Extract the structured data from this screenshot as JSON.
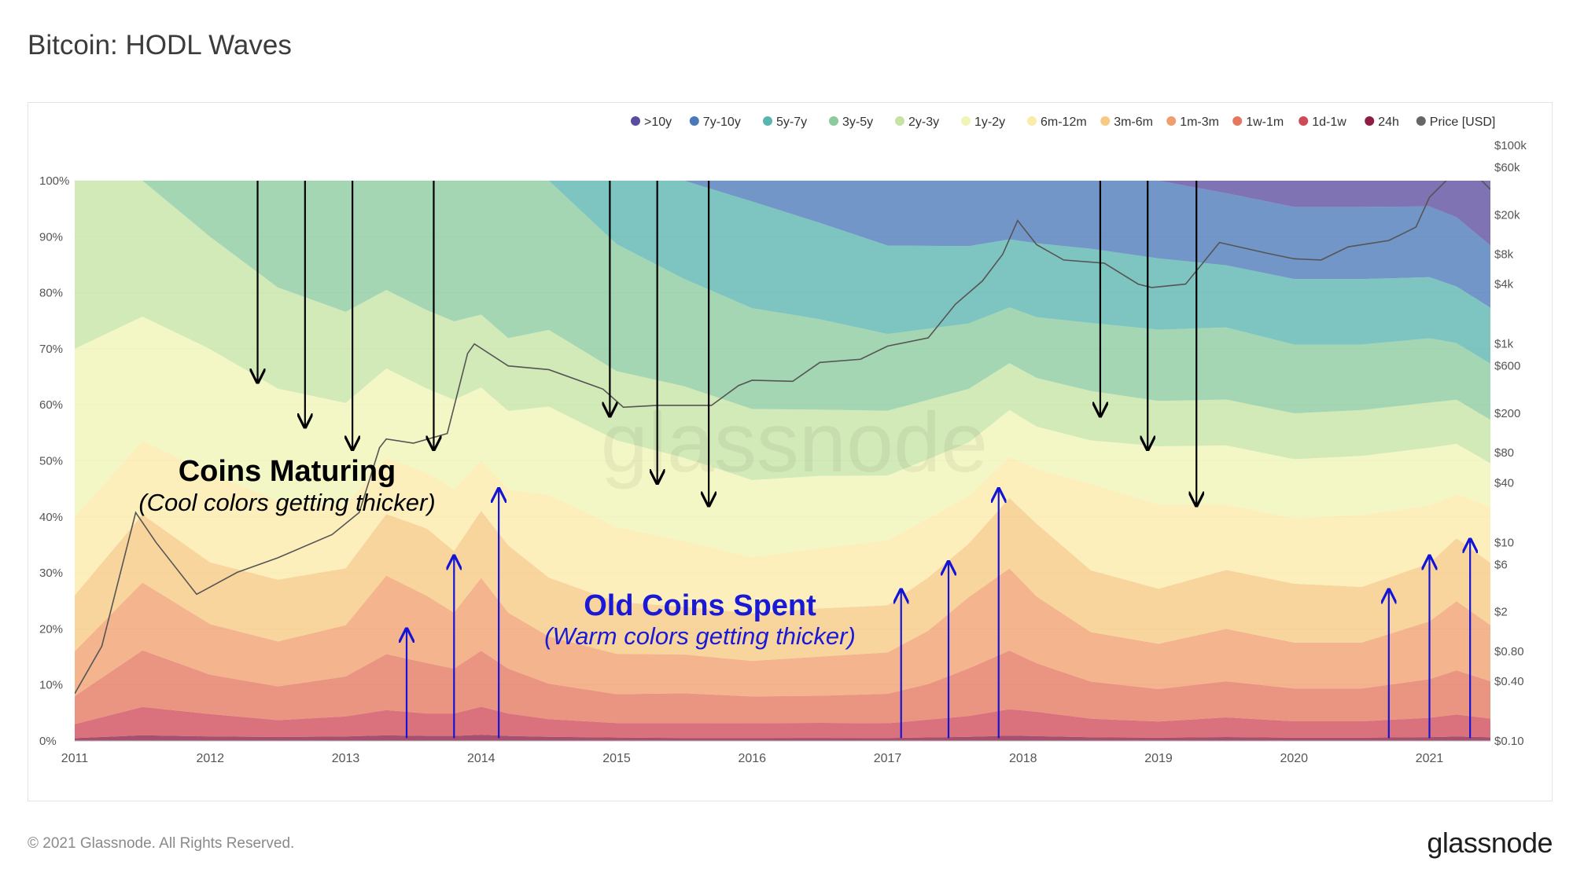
{
  "page": {
    "title": "Bitcoin: HODL Waves",
    "footer": "© 2021 Glassnode. All Rights Reserved.",
    "logo": "glassnode",
    "watermark": "glassnode"
  },
  "chart_data": {
    "type": "area",
    "title": "Bitcoin: HODL Waves",
    "stacking": "percent",
    "x_range": [
      2011.0,
      2021.45
    ],
    "x_ticks": [
      "2011",
      "2012",
      "2013",
      "2014",
      "2015",
      "2016",
      "2017",
      "2018",
      "2019",
      "2020",
      "2021"
    ],
    "left_axis": {
      "ticks": [
        "0%",
        "10%",
        "20%",
        "30%",
        "40%",
        "50%",
        "60%",
        "70%",
        "80%",
        "90%",
        "100%"
      ],
      "ylim": [
        0,
        100
      ]
    },
    "right_axis": {
      "label": "Price [USD]",
      "scale": "log",
      "ylim": [
        0.1,
        100000
      ],
      "ticks": [
        "$0.10",
        "$0.40",
        "$0.80",
        "$2",
        "$6",
        "$10",
        "$40",
        "$80",
        "$200",
        "$600",
        "$1k",
        "$4k",
        "$8k",
        "$20k",
        "$60k",
        "$100k"
      ]
    },
    "legend": [
      {
        "label": ">10y",
        "color": "#5b4c9e"
      },
      {
        "label": "7y-10y",
        "color": "#4a78b8"
      },
      {
        "label": "5y-7y",
        "color": "#5ab5b0"
      },
      {
        "label": "3y-5y",
        "color": "#8bcb9e"
      },
      {
        "label": "2y-3y",
        "color": "#c5e3a4"
      },
      {
        "label": "1y-2y",
        "color": "#f0f4b5"
      },
      {
        "label": "6m-12m",
        "color": "#fbeba8"
      },
      {
        "label": "3m-6m",
        "color": "#f7c983"
      },
      {
        "label": "1m-3m",
        "color": "#ef9f6e"
      },
      {
        "label": "1w-1m",
        "color": "#e4775e"
      },
      {
        "label": "1d-1w",
        "color": "#cf4a58"
      },
      {
        "label": "24h",
        "color": "#8e1d45"
      },
      {
        "label": "Price [USD]",
        "color": "#666666"
      }
    ],
    "boundary_x": [
      2011.0,
      2011.5,
      2012.0,
      2012.5,
      2013.0,
      2013.3,
      2013.6,
      2013.8,
      2014.0,
      2014.2,
      2014.5,
      2015.0,
      2015.5,
      2016.0,
      2016.5,
      2017.0,
      2017.3,
      2017.6,
      2017.9,
      2018.1,
      2018.5,
      2019.0,
      2019.5,
      2020.0,
      2020.5,
      2021.0,
      2021.2,
      2021.45
    ],
    "series": [
      {
        "name": "24h",
        "values": [
          0.5,
          1.0,
          0.8,
          0.7,
          0.8,
          1.0,
          0.9,
          0.9,
          1.1,
          0.9,
          0.7,
          0.6,
          0.5,
          0.5,
          0.5,
          0.5,
          0.6,
          0.7,
          0.9,
          0.8,
          0.6,
          0.5,
          0.6,
          0.5,
          0.5,
          0.6,
          0.7,
          0.6
        ]
      },
      {
        "name": "1d-1w",
        "values": [
          2.5,
          5,
          4,
          3,
          3.5,
          4.5,
          4,
          4,
          5,
          4,
          3,
          2.5,
          2.5,
          2.5,
          2.5,
          2.5,
          3,
          3.5,
          4.5,
          4,
          3,
          2.5,
          3,
          2.5,
          2.5,
          3,
          3.5,
          3
        ]
      },
      {
        "name": "1w-1m",
        "values": [
          5,
          10,
          7,
          6,
          7,
          10,
          9,
          8,
          10,
          8,
          6,
          5,
          5,
          4.5,
          4.5,
          5,
          6,
          8,
          10,
          8,
          6,
          5,
          5.5,
          5,
          5,
          6,
          7,
          6
        ]
      },
      {
        "name": "1m-3m",
        "values": [
          8,
          12,
          9,
          8,
          9,
          14,
          12,
          10,
          13,
          10,
          8,
          7,
          6.5,
          6,
          6.5,
          7,
          9,
          12,
          14,
          11,
          8,
          7,
          8,
          7,
          7,
          9,
          11,
          9
        ]
      },
      {
        "name": "3m-6m",
        "values": [
          10,
          12,
          11,
          11,
          10,
          11,
          12,
          11,
          12,
          12,
          10,
          9,
          8,
          8,
          8,
          8,
          9,
          9,
          12,
          12,
          10,
          8.5,
          9,
          9,
          8.5,
          9,
          10,
          10
        ]
      },
      {
        "name": "6m-12m",
        "values": [
          14,
          13,
          16,
          14,
          11,
          10,
          10,
          11,
          9,
          10,
          14,
          13,
          11,
          9.5,
          10,
          11,
          10,
          8,
          7,
          9,
          14,
          13,
          10,
          10,
          11,
          9,
          7,
          9
        ]
      },
      {
        "name": "1y-2y",
        "values": [
          30,
          22,
          22,
          20,
          18,
          16,
          15,
          16,
          13,
          14,
          15,
          15,
          14,
          13,
          12,
          11,
          10,
          9,
          8,
          7,
          7,
          9,
          9,
          9,
          9,
          9,
          8,
          7
        ]
      },
      {
        "name": "2y-3y",
        "values": [
          30,
          24,
          20,
          18,
          16,
          14,
          14,
          14,
          13,
          13,
          13,
          12,
          12,
          12,
          11,
          11,
          10,
          9,
          8,
          8,
          8,
          7,
          7,
          7,
          7,
          7,
          7,
          7
        ]
      },
      {
        "name": "3y-5y",
        "values": [
          0,
          0,
          10,
          19,
          23,
          19.5,
          23.1,
          25.1,
          23.9,
          28.1,
          25.3,
          22,
          18,
          17,
          15,
          13,
          12,
          11,
          9.5,
          10,
          11,
          11,
          11,
          10.5,
          10,
          10,
          9,
          9
        ]
      },
      {
        "name": "5y-7y",
        "values": [
          0,
          0,
          0,
          0,
          0,
          0,
          0,
          0,
          0,
          0,
          0,
          11,
          16.5,
          18,
          16,
          15,
          14,
          13,
          11.6,
          12.2,
          12,
          11,
          9.5,
          10,
          10,
          9.5,
          9,
          9
        ]
      },
      {
        "name": "7y-10y",
        "values": [
          0,
          0,
          0,
          0,
          0,
          0,
          0,
          0,
          0,
          0,
          0,
          0,
          0,
          3.5,
          7,
          11,
          11,
          11,
          10,
          10.3,
          11,
          12,
          11,
          11,
          11,
          11,
          11,
          10
        ]
      },
      {
        "name": ">10y",
        "values": [
          0,
          0,
          0,
          0,
          0,
          0,
          0,
          0,
          0,
          0,
          0,
          0,
          0,
          0,
          0,
          0,
          0,
          0,
          0,
          0,
          0,
          0,
          1.9,
          4,
          4,
          4,
          5.8,
          10.4
        ]
      }
    ],
    "price": {
      "x": [
        2011.0,
        2011.2,
        2011.45,
        2011.6,
        2011.9,
        2012.2,
        2012.5,
        2012.9,
        2013.1,
        2013.25,
        2013.3,
        2013.5,
        2013.75,
        2013.9,
        2013.95,
        2014.2,
        2014.5,
        2014.9,
        2015.05,
        2015.3,
        2015.7,
        2015.9,
        2016.0,
        2016.3,
        2016.5,
        2016.8,
        2017.0,
        2017.3,
        2017.5,
        2017.7,
        2017.85,
        2017.96,
        2018.1,
        2018.3,
        2018.6,
        2018.85,
        2018.95,
        2019.2,
        2019.45,
        2019.8,
        2020.0,
        2020.2,
        2020.4,
        2020.7,
        2020.9,
        2021.0,
        2021.15,
        2021.3,
        2021.45
      ],
      "y": [
        0.3,
        0.9,
        20,
        10,
        3,
        5,
        7,
        12,
        20,
        90,
        110,
        100,
        125,
        800,
        1000,
        600,
        550,
        350,
        230,
        240,
        240,
        380,
        430,
        420,
        650,
        700,
        950,
        1150,
        2500,
        4300,
        8000,
        17500,
        10000,
        7000,
        6500,
        4000,
        3700,
        4000,
        10500,
        8200,
        7200,
        7000,
        9500,
        11000,
        15000,
        30000,
        48000,
        58000,
        36000
      ]
    },
    "annotations": [
      {
        "text": "Coins Maturing",
        "color": "#000000"
      },
      {
        "text": "(Cool colors getting thicker)",
        "color": "#000000"
      },
      {
        "text": "Old Coins Spent",
        "color": "#1a1ad6"
      },
      {
        "text": "(Warm colors getting thicker)",
        "color": "#1a1ad6"
      }
    ],
    "maturing_arrows": [
      {
        "x": 2012.35,
        "y_from": 100,
        "y_to": 64
      },
      {
        "x": 2012.7,
        "y_from": 100,
        "y_to": 56
      },
      {
        "x": 2013.05,
        "y_from": 100,
        "y_to": 52
      },
      {
        "x": 2013.65,
        "y_from": 100,
        "y_to": 52
      },
      {
        "x": 2014.95,
        "y_from": 100,
        "y_to": 58
      },
      {
        "x": 2015.3,
        "y_from": 100,
        "y_to": 46
      },
      {
        "x": 2015.68,
        "y_from": 100,
        "y_to": 42
      },
      {
        "x": 2018.57,
        "y_from": 100,
        "y_to": 58
      },
      {
        "x": 2018.92,
        "y_from": 100,
        "y_to": 52
      },
      {
        "x": 2019.28,
        "y_from": 100,
        "y_to": 42
      }
    ],
    "spent_arrows": [
      {
        "x": 2013.45,
        "y_from": 0.5,
        "y_to": 20
      },
      {
        "x": 2013.8,
        "y_from": 0.5,
        "y_to": 33
      },
      {
        "x": 2014.13,
        "y_from": 0.5,
        "y_to": 45
      },
      {
        "x": 2017.1,
        "y_from": 0.5,
        "y_to": 27
      },
      {
        "x": 2017.45,
        "y_from": 0.5,
        "y_to": 32
      },
      {
        "x": 2017.82,
        "y_from": 0.5,
        "y_to": 45
      },
      {
        "x": 2020.7,
        "y_from": 0.5,
        "y_to": 27
      },
      {
        "x": 2021.0,
        "y_from": 0.5,
        "y_to": 33
      },
      {
        "x": 2021.3,
        "y_from": 0.5,
        "y_to": 36
      }
    ]
  }
}
